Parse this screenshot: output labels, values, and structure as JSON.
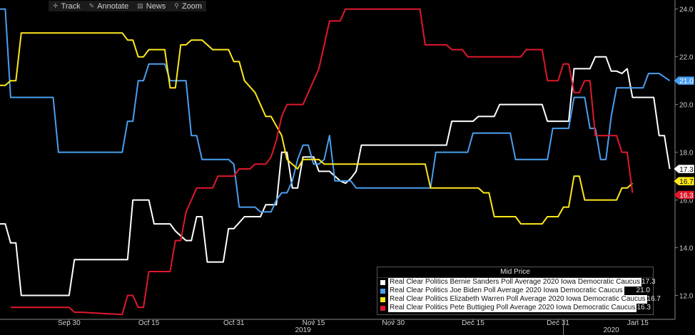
{
  "toolbar": {
    "track_label": "Track",
    "annotate_label": "Annotate",
    "news_label": "News",
    "zoom_label": "Zoom"
  },
  "legend": {
    "title": "Mid Price",
    "items": [
      {
        "name": "Real Clear Politics Bernie Sanders Poll Average 2020 Iowa Democratic Caucus",
        "value": "17.3",
        "color": "#ffffff"
      },
      {
        "name": "Real Clear Politics Joe Biden Poll Average 2020 Iowa Democratic Caucus",
        "value": "21.0",
        "color": "#4a9ff0"
      },
      {
        "name": "Real Clear Politics Elizabeth Warren Poll Average 2020 Iowa Democratic Caucus",
        "value": "16.7",
        "color": "#ffe81c"
      },
      {
        "name": "Real Clear Politics Pete Buttigieg Poll Average 2020 Iowa Democratic Caucus",
        "value": "16.3",
        "color": "#e0182d"
      }
    ]
  },
  "chart_data": {
    "type": "line",
    "x_ticks": [
      "Sep 30",
      "Oct 15",
      "Oct 31",
      "Nov 15",
      "Nov 30",
      "Dec 15",
      "Dec 31",
      "Jan 15"
    ],
    "year_labels": [
      "2019",
      "2020"
    ],
    "y_ticks": [
      "12.0",
      "14.0",
      "16.0",
      "18.0",
      "20.0",
      "22.0",
      "24.0"
    ],
    "ylim": [
      11.0,
      24.2
    ],
    "x_range": [
      "2019-09-17",
      "2020-01-22"
    ],
    "series": [
      {
        "name": "Real Clear Politics Bernie Sanders Poll Average 2020 Iowa Democratic Caucus",
        "color": "#ffffff",
        "last_label": "17.3",
        "points": [
          [
            "2019-09-17",
            15.0
          ],
          [
            "2019-09-18",
            15.0
          ],
          [
            "2019-09-19",
            14.2
          ],
          [
            "2019-09-20",
            14.2
          ],
          [
            "2019-09-21",
            12.0
          ],
          [
            "2019-09-30",
            12.0
          ],
          [
            "2019-10-01",
            13.5
          ],
          [
            "2019-10-11",
            13.5
          ],
          [
            "2019-10-12",
            16.0
          ],
          [
            "2019-10-15",
            16.0
          ],
          [
            "2019-10-16",
            15.0
          ],
          [
            "2019-10-19",
            15.0
          ],
          [
            "2019-10-20",
            14.7
          ],
          [
            "2019-10-22",
            14.3
          ],
          [
            "2019-10-23",
            14.3
          ],
          [
            "2019-10-24",
            15.3
          ],
          [
            "2019-10-25",
            15.3
          ],
          [
            "2019-10-26",
            13.4
          ],
          [
            "2019-10-29",
            13.4
          ],
          [
            "2019-10-30",
            14.8
          ],
          [
            "2019-10-31",
            14.8
          ],
          [
            "2019-11-02",
            15.3
          ],
          [
            "2019-11-05",
            15.3
          ],
          [
            "2019-11-06",
            15.8
          ],
          [
            "2019-11-08",
            15.8
          ],
          [
            "2019-11-09",
            18.0
          ],
          [
            "2019-11-10",
            18.0
          ],
          [
            "2019-11-11",
            16.5
          ],
          [
            "2019-11-12",
            16.5
          ],
          [
            "2019-11-13",
            17.8
          ],
          [
            "2019-11-15",
            17.8
          ],
          [
            "2019-11-16",
            17.2
          ],
          [
            "2019-11-18",
            17.2
          ],
          [
            "2019-11-20",
            16.8
          ],
          [
            "2019-11-21",
            16.7
          ],
          [
            "2019-11-22",
            16.9
          ],
          [
            "2019-11-23",
            17.2
          ],
          [
            "2019-11-24",
            18.3
          ],
          [
            "2019-12-10",
            18.3
          ],
          [
            "2019-12-11",
            19.3
          ],
          [
            "2019-12-15",
            19.3
          ],
          [
            "2019-12-16",
            19.5
          ],
          [
            "2019-12-19",
            19.5
          ],
          [
            "2019-12-20",
            20.0
          ],
          [
            "2019-12-28",
            20.0
          ],
          [
            "2019-12-29",
            19.3
          ],
          [
            "2020-01-02",
            19.3
          ],
          [
            "2020-01-03",
            21.5
          ],
          [
            "2020-01-06",
            21.5
          ],
          [
            "2020-01-07",
            22.0
          ],
          [
            "2020-01-09",
            22.0
          ],
          [
            "2020-01-10",
            21.4
          ],
          [
            "2020-01-11",
            21.4
          ],
          [
            "2020-01-12",
            21.3
          ],
          [
            "2020-01-13",
            21.5
          ],
          [
            "2020-01-14",
            20.3
          ],
          [
            "2020-01-18",
            20.3
          ],
          [
            "2020-01-19",
            18.7
          ],
          [
            "2020-01-20",
            18.7
          ],
          [
            "2020-01-21",
            17.3
          ]
        ]
      },
      {
        "name": "Real Clear Politics Joe Biden Poll Average 2020 Iowa Democratic Caucus",
        "color": "#4a9ff0",
        "last_label": "21.0",
        "points": [
          [
            "2019-09-17",
            24.0
          ],
          [
            "2019-09-18",
            24.0
          ],
          [
            "2019-09-19",
            20.3
          ],
          [
            "2019-09-27",
            20.3
          ],
          [
            "2019-09-28",
            18.0
          ],
          [
            "2019-10-10",
            18.0
          ],
          [
            "2019-10-11",
            19.3
          ],
          [
            "2019-10-12",
            19.3
          ],
          [
            "2019-10-13",
            21.0
          ],
          [
            "2019-10-14",
            21.0
          ],
          [
            "2019-10-15",
            21.7
          ],
          [
            "2019-10-18",
            21.7
          ],
          [
            "2019-10-19",
            21.0
          ],
          [
            "2019-10-22",
            21.0
          ],
          [
            "2019-10-23",
            18.7
          ],
          [
            "2019-10-24",
            18.7
          ],
          [
            "2019-10-25",
            17.7
          ],
          [
            "2019-10-30",
            17.7
          ],
          [
            "2019-10-31",
            17.5
          ],
          [
            "2019-11-01",
            15.7
          ],
          [
            "2019-11-04",
            15.7
          ],
          [
            "2019-11-05",
            15.5
          ],
          [
            "2019-11-07",
            15.5
          ],
          [
            "2019-11-08",
            16.0
          ],
          [
            "2019-11-09",
            16.3
          ],
          [
            "2019-11-10",
            16.3
          ],
          [
            "2019-11-11",
            16.8
          ],
          [
            "2019-11-12",
            17.7
          ],
          [
            "2019-11-13",
            18.3
          ],
          [
            "2019-11-14",
            18.3
          ],
          [
            "2019-11-15",
            17.5
          ],
          [
            "2019-11-16",
            17.5
          ],
          [
            "2019-11-17",
            17.7
          ],
          [
            "2019-11-18",
            18.7
          ],
          [
            "2019-11-19",
            16.8
          ],
          [
            "2019-11-22",
            16.8
          ],
          [
            "2019-11-23",
            16.5
          ],
          [
            "2019-12-07",
            16.5
          ],
          [
            "2019-12-08",
            18.0
          ],
          [
            "2019-12-14",
            18.0
          ],
          [
            "2019-12-15",
            18.8
          ],
          [
            "2019-12-22",
            18.8
          ],
          [
            "2019-12-23",
            17.7
          ],
          [
            "2019-12-29",
            17.7
          ],
          [
            "2019-12-30",
            19.0
          ],
          [
            "2020-01-02",
            19.0
          ],
          [
            "2020-01-03",
            20.3
          ],
          [
            "2020-01-05",
            20.3
          ],
          [
            "2020-01-06",
            19.0
          ],
          [
            "2020-01-07",
            19.0
          ],
          [
            "2020-01-08",
            17.7
          ],
          [
            "2020-01-09",
            17.7
          ],
          [
            "2020-01-10",
            19.5
          ],
          [
            "2020-01-11",
            20.7
          ],
          [
            "2020-01-16",
            20.7
          ],
          [
            "2020-01-17",
            21.3
          ],
          [
            "2020-01-19",
            21.3
          ],
          [
            "2020-01-21",
            21.0
          ]
        ]
      },
      {
        "name": "Real Clear Politics Elizabeth Warren Poll Average 2020 Iowa Democratic Caucus",
        "color": "#ffe81c",
        "last_label": "16.7",
        "points": [
          [
            "2019-09-17",
            20.8
          ],
          [
            "2019-09-18",
            20.8
          ],
          [
            "2019-09-19",
            21.0
          ],
          [
            "2019-09-20",
            21.0
          ],
          [
            "2019-09-21",
            23.0
          ],
          [
            "2019-10-10",
            23.0
          ],
          [
            "2019-10-11",
            22.7
          ],
          [
            "2019-10-12",
            22.7
          ],
          [
            "2019-10-13",
            22.0
          ],
          [
            "2019-10-14",
            22.0
          ],
          [
            "2019-10-15",
            22.3
          ],
          [
            "2019-10-18",
            22.3
          ],
          [
            "2019-10-19",
            20.7
          ],
          [
            "2019-10-20",
            20.7
          ],
          [
            "2019-10-21",
            22.5
          ],
          [
            "2019-10-22",
            22.5
          ],
          [
            "2019-10-23",
            22.7
          ],
          [
            "2019-10-25",
            22.7
          ],
          [
            "2019-10-26",
            22.5
          ],
          [
            "2019-10-27",
            22.3
          ],
          [
            "2019-10-30",
            22.3
          ],
          [
            "2019-10-31",
            21.8
          ],
          [
            "2019-11-01",
            21.8
          ],
          [
            "2019-11-02",
            21.0
          ],
          [
            "2019-11-04",
            20.5
          ],
          [
            "2019-11-05",
            20.0
          ],
          [
            "2019-11-06",
            19.5
          ],
          [
            "2019-11-07",
            19.5
          ],
          [
            "2019-11-09",
            18.7
          ],
          [
            "2019-11-10",
            17.7
          ],
          [
            "2019-11-12",
            17.3
          ],
          [
            "2019-11-13",
            17.7
          ],
          [
            "2019-11-16",
            17.7
          ],
          [
            "2019-11-17",
            17.5
          ],
          [
            "2019-12-06",
            17.5
          ],
          [
            "2019-12-07",
            16.5
          ],
          [
            "2019-12-16",
            16.5
          ],
          [
            "2019-12-17",
            16.3
          ],
          [
            "2019-12-18",
            16.3
          ],
          [
            "2019-12-19",
            15.3
          ],
          [
            "2019-12-23",
            15.3
          ],
          [
            "2019-12-24",
            15.0
          ],
          [
            "2019-12-28",
            15.0
          ],
          [
            "2019-12-29",
            15.3
          ],
          [
            "2019-12-31",
            15.3
          ],
          [
            "2020-01-01",
            15.7
          ],
          [
            "2020-01-02",
            15.7
          ],
          [
            "2020-01-03",
            17.0
          ],
          [
            "2020-01-04",
            17.0
          ],
          [
            "2020-01-05",
            16.0
          ],
          [
            "2020-01-11",
            16.0
          ],
          [
            "2020-01-12",
            16.5
          ],
          [
            "2020-01-13",
            16.5
          ],
          [
            "2020-01-14",
            16.7
          ]
        ]
      },
      {
        "name": "Real Clear Politics Pete Buttigieg Poll Average 2020 Iowa Democratic Caucus",
        "color": "#e0182d",
        "last_label": "16.3",
        "points": [
          [
            "2019-09-19",
            11.5
          ],
          [
            "2019-09-30",
            11.5
          ],
          [
            "2019-10-01",
            11.3
          ],
          [
            "2019-10-02",
            11.3
          ],
          [
            "2019-10-10",
            11.2
          ],
          [
            "2019-10-11",
            12.0
          ],
          [
            "2019-10-12",
            12.0
          ],
          [
            "2019-10-13",
            11.5
          ],
          [
            "2019-10-14",
            11.5
          ],
          [
            "2019-10-15",
            13.0
          ],
          [
            "2019-10-19",
            13.0
          ],
          [
            "2019-10-20",
            14.3
          ],
          [
            "2019-10-21",
            14.3
          ],
          [
            "2019-10-22",
            15.5
          ],
          [
            "2019-10-23",
            16.0
          ],
          [
            "2019-10-24",
            16.5
          ],
          [
            "2019-10-27",
            16.5
          ],
          [
            "2019-10-28",
            17.0
          ],
          [
            "2019-10-31",
            17.0
          ],
          [
            "2019-11-01",
            17.3
          ],
          [
            "2019-11-03",
            17.3
          ],
          [
            "2019-11-04",
            17.5
          ],
          [
            "2019-11-06",
            17.5
          ],
          [
            "2019-11-07",
            17.8
          ],
          [
            "2019-11-08",
            18.5
          ],
          [
            "2019-11-09",
            19.5
          ],
          [
            "2019-11-10",
            20.0
          ],
          [
            "2019-11-13",
            20.0
          ],
          [
            "2019-11-14",
            20.5
          ],
          [
            "2019-11-15",
            21.0
          ],
          [
            "2019-11-16",
            21.5
          ],
          [
            "2019-11-17",
            22.5
          ],
          [
            "2019-11-18",
            23.5
          ],
          [
            "2019-11-20",
            23.5
          ],
          [
            "2019-11-21",
            24.0
          ],
          [
            "2019-12-05",
            24.0
          ],
          [
            "2019-12-06",
            22.5
          ],
          [
            "2019-12-10",
            22.5
          ],
          [
            "2019-12-11",
            22.3
          ],
          [
            "2019-12-13",
            22.3
          ],
          [
            "2019-12-14",
            22.0
          ],
          [
            "2019-12-24",
            22.0
          ],
          [
            "2019-12-25",
            22.3
          ],
          [
            "2019-12-28",
            22.3
          ],
          [
            "2019-12-29",
            21.0
          ],
          [
            "2019-12-31",
            21.0
          ],
          [
            "2020-01-01",
            21.7
          ],
          [
            "2020-01-02",
            21.7
          ],
          [
            "2020-01-03",
            20.5
          ],
          [
            "2020-01-04",
            20.5
          ],
          [
            "2020-01-05",
            21.0
          ],
          [
            "2020-01-06",
            21.0
          ],
          [
            "2020-01-07",
            18.7
          ],
          [
            "2020-01-11",
            18.7
          ],
          [
            "2020-01-12",
            18.0
          ],
          [
            "2020-01-13",
            18.0
          ],
          [
            "2020-01-14",
            16.3
          ]
        ]
      }
    ]
  }
}
